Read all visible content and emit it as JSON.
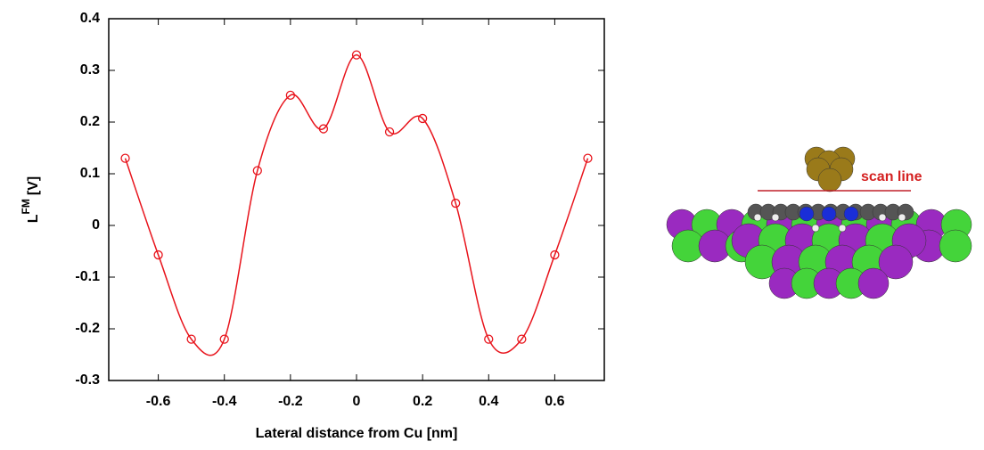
{
  "chart_data": {
    "type": "line",
    "xlabel": "Lateral distance from Cu [nm]",
    "ylabel": "L",
    "ylabel_sup": "FM",
    "ylabel_unit": "[V]",
    "x": [
      -0.7,
      -0.6,
      -0.5,
      -0.4,
      -0.3,
      -0.2,
      -0.1,
      0,
      0.1,
      0.2,
      0.3,
      0.4,
      0.5,
      0.6,
      0.7
    ],
    "series": [
      {
        "color": "#e8141c",
        "values": [
          0.13,
          -0.057,
          -0.22,
          -0.22,
          0.106,
          0.252,
          0.187,
          0.33,
          0.181,
          0.207,
          0.043,
          -0.22,
          -0.22,
          -0.057,
          0.13
        ]
      }
    ],
    "xlim": [
      -0.75,
      0.75
    ],
    "xticks": [
      -0.6,
      -0.4,
      -0.2,
      0,
      0.2,
      0.4,
      0.6
    ],
    "ylim": [
      -0.3,
      0.4
    ],
    "yticks": [
      -0.3,
      -0.2,
      -0.1,
      0,
      0.1,
      0.2,
      0.3,
      0.4
    ]
  },
  "image": {
    "annotation": "scan line"
  }
}
